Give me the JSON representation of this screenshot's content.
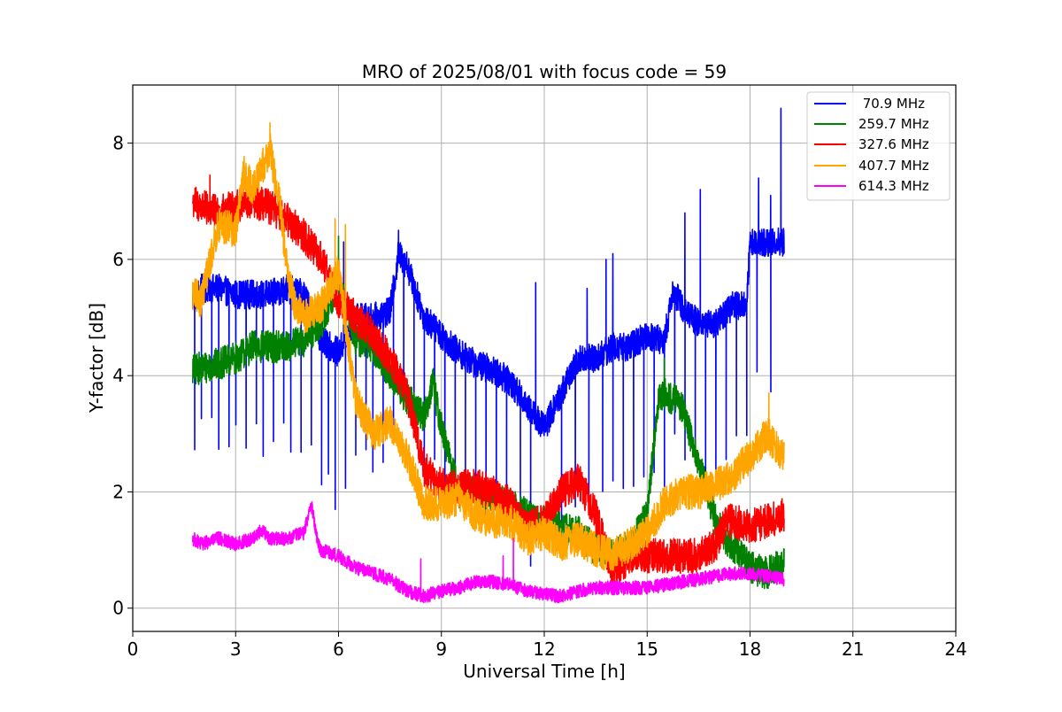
{
  "chart_data": {
    "type": "line",
    "title": "MRO of 2025/08/01 with focus code = 59",
    "xlabel": "Universal Time [h]",
    "ylabel": "Y-factor [dB]",
    "xlim": [
      0,
      24
    ],
    "ylim": [
      -0.4,
      9.0
    ],
    "xticks": [
      0,
      3,
      6,
      9,
      12,
      15,
      18,
      21,
      24
    ],
    "yticks": [
      0,
      2,
      4,
      6,
      8
    ],
    "xtick_labels": [
      "0",
      "3",
      "6",
      "9",
      "12",
      "15",
      "18",
      "21",
      "24"
    ],
    "ytick_labels": [
      "0",
      "2",
      "4",
      "6",
      "8"
    ],
    "grid": true,
    "legend_position": "top-right",
    "series": [
      {
        "name": "70.9 MHz",
        "legend_label": " 70.9 MHz",
        "color": "#0000ff",
        "noise": 0.25,
        "x": [
          1.75,
          2.0,
          2.5,
          3.0,
          3.5,
          4.0,
          4.5,
          5.0,
          5.5,
          6.0,
          6.5,
          7.0,
          7.5,
          7.75,
          8.0,
          8.5,
          9.0,
          9.5,
          10.0,
          10.5,
          11.0,
          11.5,
          12.0,
          12.5,
          13.0,
          13.5,
          14.0,
          14.5,
          15.0,
          15.5,
          15.75,
          16.0,
          16.5,
          17.0,
          17.5,
          17.9,
          18.0,
          18.5,
          19.0
        ],
        "y": [
          5.3,
          5.5,
          5.5,
          5.4,
          5.4,
          5.4,
          5.5,
          5.4,
          4.6,
          4.4,
          5.0,
          5.0,
          5.1,
          6.1,
          5.9,
          5.0,
          4.7,
          4.4,
          4.2,
          4.1,
          3.9,
          3.5,
          3.1,
          3.7,
          4.3,
          4.3,
          4.5,
          4.5,
          4.7,
          4.6,
          5.5,
          5.2,
          4.9,
          4.9,
          5.2,
          5.2,
          6.3,
          6.3,
          6.3
        ],
        "dips": [
          1.8,
          2.0,
          2.3,
          2.5,
          2.8,
          3.0,
          3.3,
          3.6,
          3.8,
          4.1,
          4.4,
          4.6,
          4.9,
          5.2,
          5.5,
          5.7,
          5.9,
          6.2,
          6.5,
          6.8,
          7.0,
          7.3,
          7.6,
          7.9,
          8.2,
          8.5,
          8.8,
          9.1,
          9.4,
          9.7,
          10.0,
          10.3,
          10.6,
          10.9,
          11.3,
          11.6,
          12.5,
          12.9,
          13.3,
          13.7,
          14.0,
          14.3,
          14.6,
          14.9,
          15.2,
          15.5,
          15.8,
          16.1,
          16.4,
          16.7,
          17.0,
          17.3,
          17.6,
          17.9,
          18.2,
          18.6
        ],
        "dip_depth": 2.2,
        "spikes": [
          [
            6.15,
            6.3
          ],
          [
            7.75,
            6.5
          ],
          [
            11.75,
            5.6
          ],
          [
            13.25,
            5.5
          ],
          [
            13.8,
            6.0
          ],
          [
            14.0,
            6.1
          ],
          [
            16.1,
            6.8
          ],
          [
            16.55,
            7.2
          ],
          [
            18.25,
            7.4
          ],
          [
            18.6,
            7.1
          ],
          [
            18.9,
            8.6
          ]
        ]
      },
      {
        "name": "259.7 MHz",
        "legend_label": "259.7 MHz",
        "color": "#008000",
        "noise": 0.28,
        "x": [
          1.75,
          2.5,
          3.0,
          3.5,
          4.0,
          4.5,
          5.0,
          5.5,
          6.0,
          6.5,
          7.0,
          7.5,
          8.0,
          8.5,
          8.75,
          9.0,
          9.5,
          10.0,
          10.5,
          11.0,
          11.5,
          12.0,
          12.5,
          13.0,
          13.5,
          14.0,
          14.5,
          15.0,
          15.3,
          15.5,
          16.0,
          16.5,
          17.0,
          17.3,
          18.0,
          18.5,
          19.0
        ],
        "y": [
          4.1,
          4.2,
          4.3,
          4.5,
          4.5,
          4.5,
          4.6,
          4.9,
          5.6,
          4.6,
          4.5,
          4.0,
          3.6,
          3.3,
          3.9,
          3.1,
          2.0,
          2.0,
          1.9,
          1.8,
          1.6,
          1.5,
          1.4,
          1.3,
          1.0,
          0.9,
          1.1,
          1.6,
          3.5,
          3.7,
          3.5,
          2.5,
          1.5,
          1.2,
          0.7,
          0.6,
          0.8
        ],
        "dips": [],
        "dip_depth": 0,
        "spikes": [
          [
            6.0,
            6.4
          ],
          [
            15.5,
            4.3
          ]
        ]
      },
      {
        "name": "327.6 MHz",
        "legend_label": "327.6 MHz",
        "color": "#ff0000",
        "noise": 0.3,
        "x": [
          1.75,
          2.0,
          2.5,
          3.0,
          3.5,
          4.0,
          4.5,
          5.0,
          5.5,
          6.0,
          6.5,
          7.0,
          7.5,
          8.0,
          8.5,
          9.0,
          9.5,
          10.0,
          10.5,
          11.0,
          11.5,
          12.0,
          12.5,
          13.0,
          13.5,
          14.0,
          14.5,
          15.0,
          15.5,
          16.0,
          16.5,
          17.0,
          17.3,
          17.5,
          18.0,
          18.5,
          19.0
        ],
        "y": [
          7.0,
          6.9,
          6.8,
          6.9,
          7.0,
          6.9,
          6.7,
          6.4,
          6.0,
          5.3,
          5.0,
          4.7,
          4.3,
          3.7,
          2.4,
          2.1,
          2.1,
          2.1,
          2.0,
          1.8,
          1.4,
          1.5,
          2.0,
          2.2,
          1.6,
          0.6,
          0.9,
          0.9,
          0.9,
          0.9,
          0.9,
          1.1,
          1.5,
          1.5,
          1.4,
          1.5,
          1.6
        ],
        "dips": [],
        "dip_depth": 0,
        "spikes": [
          [
            2.25,
            7.45
          ]
        ]
      },
      {
        "name": "407.7 MHz",
        "legend_label": "407.7 MHz",
        "color": "#ffa500",
        "noise": 0.3,
        "x": [
          1.75,
          2.0,
          2.5,
          3.0,
          3.25,
          3.5,
          4.0,
          4.3,
          4.5,
          4.75,
          5.0,
          5.5,
          6.0,
          6.5,
          7.0,
          7.5,
          8.0,
          8.5,
          9.0,
          9.5,
          10.0,
          10.5,
          11.0,
          11.5,
          12.0,
          12.5,
          13.0,
          13.5,
          14.0,
          14.5,
          15.0,
          15.5,
          16.0,
          16.5,
          17.0,
          17.5,
          18.0,
          18.5,
          19.0
        ],
        "y": [
          5.4,
          5.3,
          6.6,
          6.5,
          7.5,
          7.2,
          7.9,
          6.9,
          5.8,
          5.2,
          5.0,
          5.2,
          5.8,
          3.6,
          3.0,
          3.2,
          2.6,
          1.8,
          1.8,
          1.9,
          1.6,
          1.5,
          1.5,
          1.2,
          1.3,
          1.1,
          1.2,
          1.0,
          0.9,
          1.1,
          1.3,
          1.8,
          2.0,
          2.0,
          2.1,
          2.3,
          2.6,
          3.0,
          2.6
        ],
        "dips": [],
        "dip_depth": 0,
        "spikes": [
          [
            4.0,
            8.35
          ],
          [
            5.9,
            6.7
          ],
          [
            6.2,
            6.6
          ],
          [
            18.55,
            3.7
          ]
        ]
      },
      {
        "name": "614.3 MHz",
        "legend_label": "614.3 MHz",
        "color": "#ff00ff",
        "noise": 0.12,
        "x": [
          1.75,
          2.0,
          2.5,
          3.0,
          3.5,
          3.75,
          4.0,
          4.5,
          5.0,
          5.2,
          5.4,
          5.5,
          6.0,
          6.5,
          7.0,
          7.5,
          8.0,
          8.5,
          9.0,
          9.5,
          10.0,
          10.5,
          11.0,
          11.5,
          12.0,
          12.5,
          13.0,
          13.5,
          14.0,
          14.5,
          15.0,
          15.5,
          16.0,
          16.5,
          17.0,
          17.5,
          18.0,
          18.5,
          19.0
        ],
        "y": [
          1.2,
          1.1,
          1.2,
          1.1,
          1.2,
          1.35,
          1.2,
          1.2,
          1.3,
          1.8,
          1.1,
          1.0,
          0.9,
          0.7,
          0.6,
          0.5,
          0.3,
          0.2,
          0.3,
          0.35,
          0.45,
          0.45,
          0.4,
          0.3,
          0.25,
          0.2,
          0.3,
          0.35,
          0.35,
          0.35,
          0.35,
          0.4,
          0.45,
          0.5,
          0.55,
          0.6,
          0.6,
          0.55,
          0.5
        ],
        "dips": [],
        "dip_depth": 0,
        "spikes": [
          [
            8.4,
            0.85
          ],
          [
            10.8,
            0.9
          ],
          [
            11.1,
            1.2
          ]
        ]
      }
    ]
  }
}
